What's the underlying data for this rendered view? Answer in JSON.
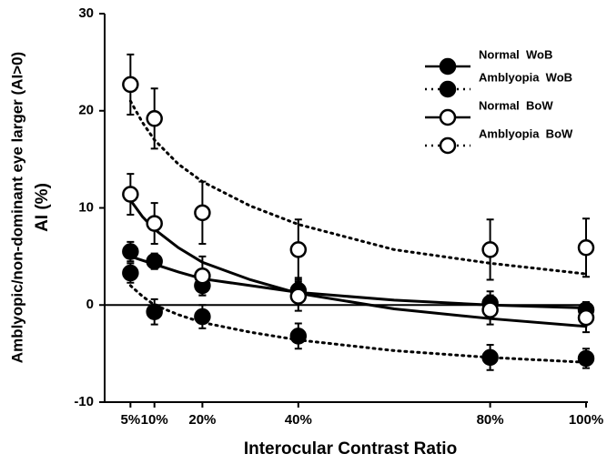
{
  "chart_data": {
    "type": "scatter",
    "xlabel": "Interocular Contrast Ratio",
    "ylabel": "AI (%)",
    "ylabel2": "Amblyopic/non-dominant eye larger (AI>0)",
    "x": [
      5,
      10,
      20,
      40,
      80,
      100
    ],
    "xlim": [
      0,
      100
    ],
    "xticks": [
      {
        "value": 5,
        "label": "5%"
      },
      {
        "value": 10,
        "label": "10%"
      },
      {
        "value": 20,
        "label": "20%"
      },
      {
        "value": 40,
        "label": "40%"
      },
      {
        "value": 80,
        "label": "80%"
      },
      {
        "value": 100,
        "label": "100%"
      }
    ],
    "ylim": [
      -10,
      30
    ],
    "yticks": [
      -10,
      0,
      10,
      20,
      30
    ],
    "fit_x": [
      5,
      7.5,
      10,
      15,
      20,
      30,
      40,
      60,
      80,
      100
    ],
    "legend": "upper right",
    "series": [
      {
        "name": "Normal  WoB",
        "color": "#000000",
        "marker": "filled",
        "dash": "solid",
        "values": [
          5.5,
          4.5,
          2.0,
          1.5,
          0.2,
          -0.5
        ],
        "errors": [
          1.0,
          0.8,
          1.0,
          1.3,
          1.2,
          0.8
        ],
        "fit": [
          5.0,
          4.6,
          4.2,
          3.4,
          2.7,
          2.0,
          1.3,
          0.5,
          0.0,
          -0.3
        ]
      },
      {
        "name": "Amblyopia  WoB",
        "color": "#000000",
        "marker": "filled",
        "dash": "dotted",
        "values": [
          3.3,
          -0.7,
          -1.2,
          -3.2,
          -5.4,
          -5.5
        ],
        "errors": [
          1.0,
          1.3,
          1.2,
          1.3,
          1.3,
          1.0
        ],
        "fit": [
          2.0,
          0.9,
          0.0,
          -1.0,
          -1.8,
          -2.8,
          -3.6,
          -4.7,
          -5.4,
          -5.9
        ]
      },
      {
        "name": "Normal  BoW",
        "color": "#000000",
        "marker": "open",
        "dash": "solid",
        "values": [
          11.4,
          8.4,
          3.0,
          0.9,
          -0.5,
          -1.3
        ],
        "errors": [
          2.1,
          2.1,
          2.0,
          1.5,
          1.5,
          1.5
        ],
        "fit": [
          10.8,
          9.1,
          7.8,
          5.9,
          4.4,
          2.6,
          1.2,
          -0.4,
          -1.4,
          -2.2
        ]
      },
      {
        "name": "Amblyopia  BoW",
        "color": "#000000",
        "marker": "open",
        "dash": "dotted",
        "values": [
          22.7,
          19.2,
          9.5,
          5.7,
          5.7,
          5.9
        ],
        "errors": [
          3.1,
          3.1,
          3.2,
          3.1,
          3.1,
          3.0
        ],
        "fit": [
          21.0,
          18.8,
          17.0,
          14.5,
          12.7,
          10.2,
          8.3,
          5.7,
          4.3,
          3.2
        ]
      }
    ]
  }
}
